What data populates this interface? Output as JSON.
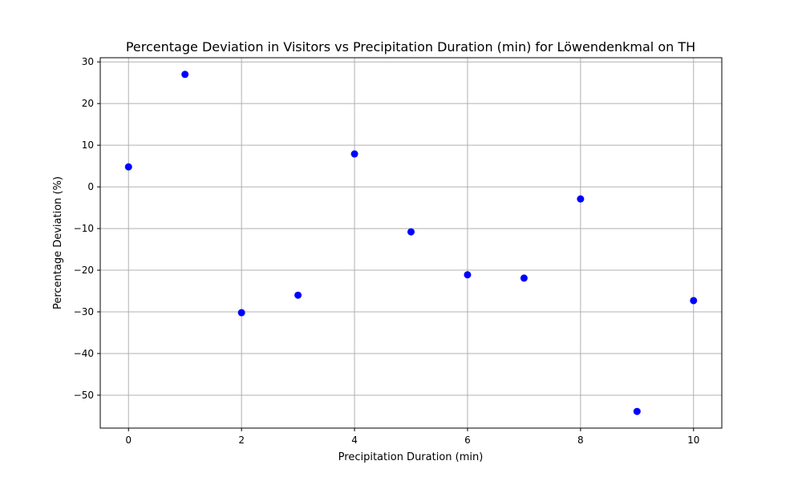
{
  "chart_data": {
    "type": "scatter",
    "title": "Percentage Deviation in Visitors vs Precipitation Duration (min) for Löwendenkmal on TH",
    "xlabel": "Precipitation Duration (min)",
    "ylabel": "Percentage Deviation (%)",
    "x": [
      0,
      1,
      2,
      3,
      4,
      5,
      6,
      7,
      8,
      9,
      10
    ],
    "y": [
      4.8,
      27.0,
      -30.2,
      -26.0,
      7.9,
      -10.8,
      -21.1,
      -21.9,
      -2.9,
      -53.9,
      -27.3
    ],
    "xlim": [
      -0.5,
      10.5
    ],
    "ylim": [
      -57.9,
      31.0
    ],
    "x_ticks": [
      0,
      2,
      4,
      6,
      8,
      10
    ],
    "y_ticks": [
      30,
      20,
      10,
      0,
      -10,
      -20,
      -30,
      -40,
      -50
    ],
    "x_tick_labels": [
      "0",
      "2",
      "4",
      "6",
      "8",
      "10"
    ],
    "y_tick_labels": [
      "30",
      "20",
      "10",
      "0",
      "−10",
      "−20",
      "−30",
      "−40",
      "−50"
    ],
    "grid": true,
    "marker_color": "#0000ff",
    "grid_color": "#b0b0b0",
    "axis_color": "#000000"
  }
}
